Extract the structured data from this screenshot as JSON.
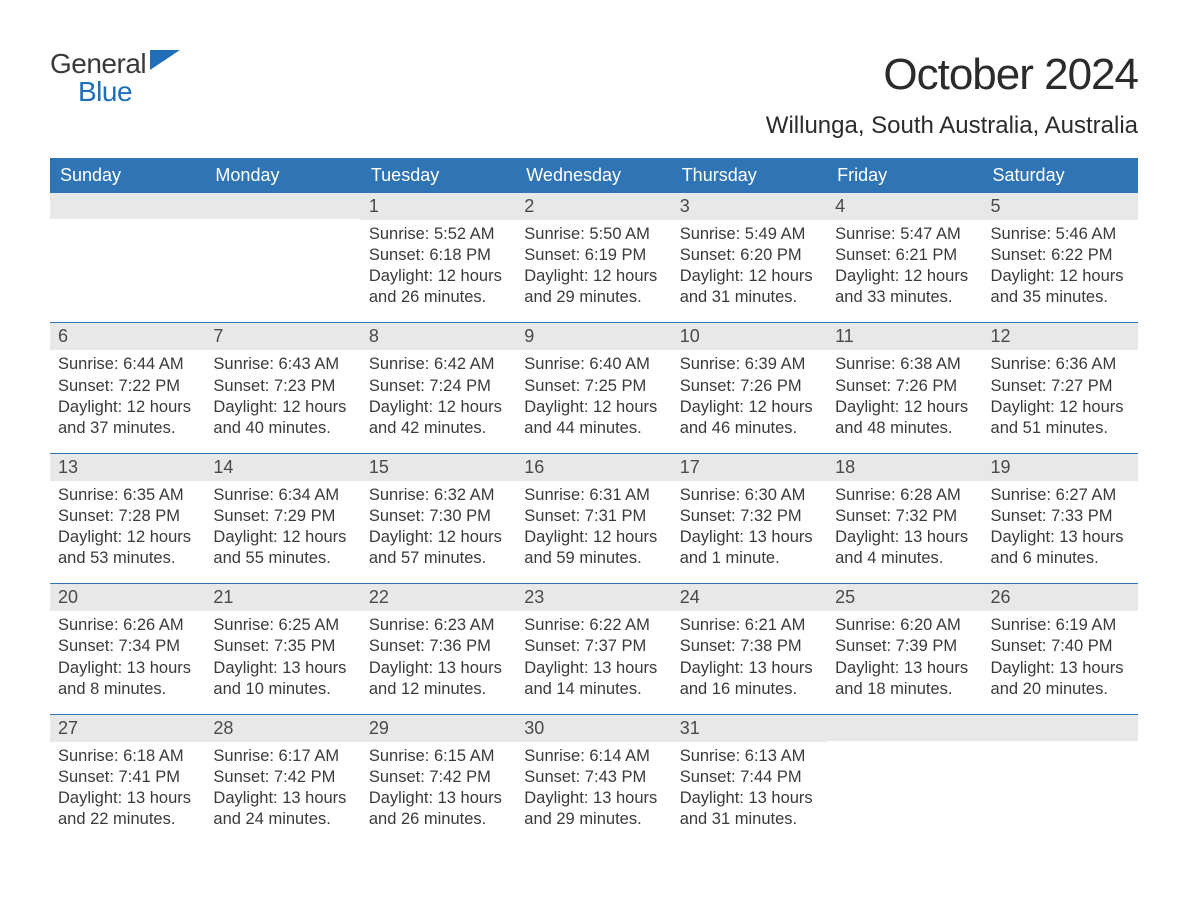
{
  "logo": {
    "line1": "General",
    "line2": "Blue",
    "text_color": "#3a3a3a",
    "blue_color": "#1f6fb8"
  },
  "title": "October 2024",
  "location": "Willunga, South Australia, Australia",
  "theme": {
    "header_bg": "#2f75b5",
    "header_fg": "#ffffff",
    "daynum_bg": "#e8e8e8",
    "week_border": "#2f75b5",
    "body_text": "#3a3a3a",
    "page_bg": "#ffffff"
  },
  "days_of_week": [
    "Sunday",
    "Monday",
    "Tuesday",
    "Wednesday",
    "Thursday",
    "Friday",
    "Saturday"
  ],
  "weeks": [
    [
      {
        "n": "",
        "sunrise": "",
        "sunset": "",
        "daylight1": "",
        "daylight2": ""
      },
      {
        "n": "",
        "sunrise": "",
        "sunset": "",
        "daylight1": "",
        "daylight2": ""
      },
      {
        "n": "1",
        "sunrise": "Sunrise: 5:52 AM",
        "sunset": "Sunset: 6:18 PM",
        "daylight1": "Daylight: 12 hours",
        "daylight2": "and 26 minutes."
      },
      {
        "n": "2",
        "sunrise": "Sunrise: 5:50 AM",
        "sunset": "Sunset: 6:19 PM",
        "daylight1": "Daylight: 12 hours",
        "daylight2": "and 29 minutes."
      },
      {
        "n": "3",
        "sunrise": "Sunrise: 5:49 AM",
        "sunset": "Sunset: 6:20 PM",
        "daylight1": "Daylight: 12 hours",
        "daylight2": "and 31 minutes."
      },
      {
        "n": "4",
        "sunrise": "Sunrise: 5:47 AM",
        "sunset": "Sunset: 6:21 PM",
        "daylight1": "Daylight: 12 hours",
        "daylight2": "and 33 minutes."
      },
      {
        "n": "5",
        "sunrise": "Sunrise: 5:46 AM",
        "sunset": "Sunset: 6:22 PM",
        "daylight1": "Daylight: 12 hours",
        "daylight2": "and 35 minutes."
      }
    ],
    [
      {
        "n": "6",
        "sunrise": "Sunrise: 6:44 AM",
        "sunset": "Sunset: 7:22 PM",
        "daylight1": "Daylight: 12 hours",
        "daylight2": "and 37 minutes."
      },
      {
        "n": "7",
        "sunrise": "Sunrise: 6:43 AM",
        "sunset": "Sunset: 7:23 PM",
        "daylight1": "Daylight: 12 hours",
        "daylight2": "and 40 minutes."
      },
      {
        "n": "8",
        "sunrise": "Sunrise: 6:42 AM",
        "sunset": "Sunset: 7:24 PM",
        "daylight1": "Daylight: 12 hours",
        "daylight2": "and 42 minutes."
      },
      {
        "n": "9",
        "sunrise": "Sunrise: 6:40 AM",
        "sunset": "Sunset: 7:25 PM",
        "daylight1": "Daylight: 12 hours",
        "daylight2": "and 44 minutes."
      },
      {
        "n": "10",
        "sunrise": "Sunrise: 6:39 AM",
        "sunset": "Sunset: 7:26 PM",
        "daylight1": "Daylight: 12 hours",
        "daylight2": "and 46 minutes."
      },
      {
        "n": "11",
        "sunrise": "Sunrise: 6:38 AM",
        "sunset": "Sunset: 7:26 PM",
        "daylight1": "Daylight: 12 hours",
        "daylight2": "and 48 minutes."
      },
      {
        "n": "12",
        "sunrise": "Sunrise: 6:36 AM",
        "sunset": "Sunset: 7:27 PM",
        "daylight1": "Daylight: 12 hours",
        "daylight2": "and 51 minutes."
      }
    ],
    [
      {
        "n": "13",
        "sunrise": "Sunrise: 6:35 AM",
        "sunset": "Sunset: 7:28 PM",
        "daylight1": "Daylight: 12 hours",
        "daylight2": "and 53 minutes."
      },
      {
        "n": "14",
        "sunrise": "Sunrise: 6:34 AM",
        "sunset": "Sunset: 7:29 PM",
        "daylight1": "Daylight: 12 hours",
        "daylight2": "and 55 minutes."
      },
      {
        "n": "15",
        "sunrise": "Sunrise: 6:32 AM",
        "sunset": "Sunset: 7:30 PM",
        "daylight1": "Daylight: 12 hours",
        "daylight2": "and 57 minutes."
      },
      {
        "n": "16",
        "sunrise": "Sunrise: 6:31 AM",
        "sunset": "Sunset: 7:31 PM",
        "daylight1": "Daylight: 12 hours",
        "daylight2": "and 59 minutes."
      },
      {
        "n": "17",
        "sunrise": "Sunrise: 6:30 AM",
        "sunset": "Sunset: 7:32 PM",
        "daylight1": "Daylight: 13 hours",
        "daylight2": "and 1 minute."
      },
      {
        "n": "18",
        "sunrise": "Sunrise: 6:28 AM",
        "sunset": "Sunset: 7:32 PM",
        "daylight1": "Daylight: 13 hours",
        "daylight2": "and 4 minutes."
      },
      {
        "n": "19",
        "sunrise": "Sunrise: 6:27 AM",
        "sunset": "Sunset: 7:33 PM",
        "daylight1": "Daylight: 13 hours",
        "daylight2": "and 6 minutes."
      }
    ],
    [
      {
        "n": "20",
        "sunrise": "Sunrise: 6:26 AM",
        "sunset": "Sunset: 7:34 PM",
        "daylight1": "Daylight: 13 hours",
        "daylight2": "and 8 minutes."
      },
      {
        "n": "21",
        "sunrise": "Sunrise: 6:25 AM",
        "sunset": "Sunset: 7:35 PM",
        "daylight1": "Daylight: 13 hours",
        "daylight2": "and 10 minutes."
      },
      {
        "n": "22",
        "sunrise": "Sunrise: 6:23 AM",
        "sunset": "Sunset: 7:36 PM",
        "daylight1": "Daylight: 13 hours",
        "daylight2": "and 12 minutes."
      },
      {
        "n": "23",
        "sunrise": "Sunrise: 6:22 AM",
        "sunset": "Sunset: 7:37 PM",
        "daylight1": "Daylight: 13 hours",
        "daylight2": "and 14 minutes."
      },
      {
        "n": "24",
        "sunrise": "Sunrise: 6:21 AM",
        "sunset": "Sunset: 7:38 PM",
        "daylight1": "Daylight: 13 hours",
        "daylight2": "and 16 minutes."
      },
      {
        "n": "25",
        "sunrise": "Sunrise: 6:20 AM",
        "sunset": "Sunset: 7:39 PM",
        "daylight1": "Daylight: 13 hours",
        "daylight2": "and 18 minutes."
      },
      {
        "n": "26",
        "sunrise": "Sunrise: 6:19 AM",
        "sunset": "Sunset: 7:40 PM",
        "daylight1": "Daylight: 13 hours",
        "daylight2": "and 20 minutes."
      }
    ],
    [
      {
        "n": "27",
        "sunrise": "Sunrise: 6:18 AM",
        "sunset": "Sunset: 7:41 PM",
        "daylight1": "Daylight: 13 hours",
        "daylight2": "and 22 minutes."
      },
      {
        "n": "28",
        "sunrise": "Sunrise: 6:17 AM",
        "sunset": "Sunset: 7:42 PM",
        "daylight1": "Daylight: 13 hours",
        "daylight2": "and 24 minutes."
      },
      {
        "n": "29",
        "sunrise": "Sunrise: 6:15 AM",
        "sunset": "Sunset: 7:42 PM",
        "daylight1": "Daylight: 13 hours",
        "daylight2": "and 26 minutes."
      },
      {
        "n": "30",
        "sunrise": "Sunrise: 6:14 AM",
        "sunset": "Sunset: 7:43 PM",
        "daylight1": "Daylight: 13 hours",
        "daylight2": "and 29 minutes."
      },
      {
        "n": "31",
        "sunrise": "Sunrise: 6:13 AM",
        "sunset": "Sunset: 7:44 PM",
        "daylight1": "Daylight: 13 hours",
        "daylight2": "and 31 minutes."
      },
      {
        "n": "",
        "sunrise": "",
        "sunset": "",
        "daylight1": "",
        "daylight2": ""
      },
      {
        "n": "",
        "sunrise": "",
        "sunset": "",
        "daylight1": "",
        "daylight2": ""
      }
    ]
  ]
}
